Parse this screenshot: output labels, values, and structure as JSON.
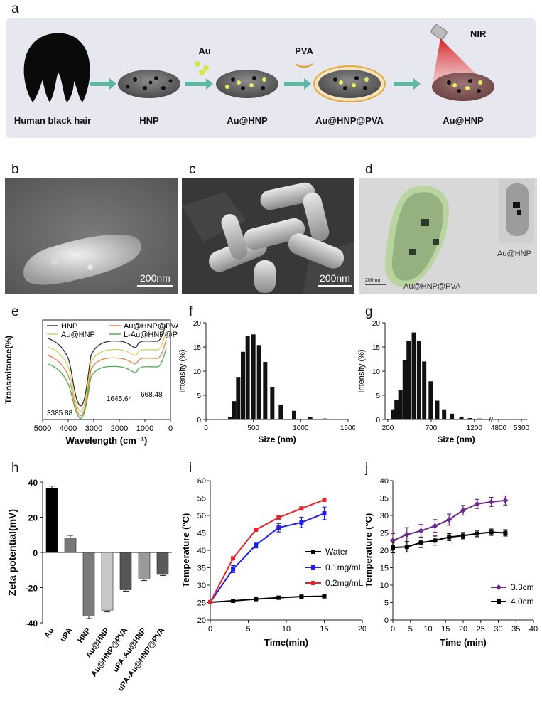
{
  "panels": {
    "a": "a",
    "b": "b",
    "c": "c",
    "d": "d",
    "e": "e",
    "f": "f",
    "g": "g",
    "h": "h",
    "i": "i",
    "j": "j"
  },
  "scheme": {
    "hair_label": "Human black hair",
    "hnp_label": "HNP",
    "au_label": "Au",
    "au_hnp_label": "Au@HNP",
    "pva_label": "PVA",
    "au_hnp_pva_label": "Au@HNP@PVA",
    "nir_label": "NIR",
    "au_hnp_final_label": "Au@HNP"
  },
  "micro": {
    "b_scale": "200nm",
    "c_scale": "200nm",
    "d_scale": "200 nm",
    "d_main_label": "Au@HNP@PVA",
    "d_inset_label": "Au@HNP"
  },
  "colors": {
    "water": "#000000",
    "c01": "#1f1fe6",
    "c02": "#e6262a",
    "c33": "#6b2a8a",
    "c40": "#000000"
  },
  "chart_data": [
    {
      "id": "e",
      "type": "line",
      "xlabel": "Wavelength (cm⁻¹)",
      "ylabel": "Transmitance(%)",
      "xlim": [
        5000,
        0
      ],
      "xticks": [
        "5000",
        "4000",
        "3000",
        "2000",
        "1000",
        "0"
      ],
      "legend": [
        "HNP",
        "Au@HNP",
        "Au@HNP@PVA",
        "L-Au@HNP@PVA"
      ],
      "legend_colors": [
        "#333333",
        "#d8d060",
        "#e8804a",
        "#4cae4c"
      ],
      "annotations": [
        "3385.88",
        "1645.64",
        "668.48"
      ]
    },
    {
      "id": "f",
      "type": "bar",
      "xlabel": "Size (nm)",
      "ylabel": "Intensity (%)",
      "xlim": [
        0,
        1500
      ],
      "ylim": [
        0,
        20
      ],
      "xticks": [
        "0",
        "500",
        "1000",
        "1500"
      ],
      "yticks": [
        "0",
        "5",
        "10",
        "15",
        "20"
      ],
      "x": [
        255,
        295,
        340,
        390,
        440,
        500,
        560,
        625,
        700,
        790,
        930,
        1100,
        1260
      ],
      "values": [
        0.5,
        3.8,
        8.8,
        14,
        17.2,
        17.6,
        15.4,
        11.9,
        6.7,
        3.1,
        1.8,
        0.5,
        0.2
      ]
    },
    {
      "id": "g",
      "type": "bar",
      "xlabel": "Size (nm)",
      "ylabel": "Intensity (%)",
      "ylim": [
        0,
        20
      ],
      "xticks": [
        "200",
        "700",
        "1200",
        "4800",
        "5300"
      ],
      "yticks": [
        "0",
        "5",
        "10",
        "15",
        "20"
      ],
      "x": [
        260,
        300,
        345,
        395,
        440,
        500,
        560,
        620,
        695,
        770,
        850,
        940,
        1050,
        1150,
        1260
      ],
      "values": [
        2.1,
        4.1,
        6.1,
        12.3,
        16.3,
        18.0,
        16.3,
        12.0,
        7.9,
        3.9,
        2.1,
        1.2,
        0.6,
        0.3,
        0.2
      ]
    },
    {
      "id": "h",
      "type": "bar",
      "ylabel": "Zeta potential(mV)",
      "ylim": [
        -40,
        40
      ],
      "yticks": [
        "40",
        "20",
        "0",
        "-20",
        "-40"
      ],
      "categories": [
        "Au",
        "uPA",
        "HNP",
        "Au@HNP",
        "Au@HNP@PVA",
        "uPA-Au@HNP",
        "uPA-Au@HNP@PVA"
      ],
      "values": [
        36.5,
        8.2,
        -36.2,
        -32.8,
        -21.2,
        -15.2,
        -12.5
      ],
      "errors": [
        1.2,
        1.5,
        1.4,
        1.0,
        0.8,
        0.8,
        0.6
      ],
      "bar_colors": [
        "#000000",
        "#777777",
        "#7a7a7a",
        "#c8c8c8",
        "#555555",
        "#9a9a9a",
        "#5a5a5a"
      ]
    },
    {
      "id": "i",
      "type": "line",
      "xlabel": "Time(min)",
      "ylabel": "Temperature (°C)",
      "xlim": [
        0,
        20
      ],
      "ylim": [
        20,
        60
      ],
      "xticks": [
        "0",
        "5",
        "10",
        "15",
        "20"
      ],
      "yticks": [
        "20",
        "25",
        "30",
        "35",
        "40",
        "45",
        "50",
        "55",
        "60"
      ],
      "series": [
        {
          "name": "Water",
          "x": [
            0,
            3,
            6,
            9,
            12,
            15
          ],
          "y": [
            25.1,
            25.5,
            26.0,
            26.4,
            26.7,
            26.8
          ],
          "err": [
            0.3,
            0.3,
            0.3,
            0.3,
            0.3,
            0.3
          ]
        },
        {
          "name": "0.1mg/mL",
          "x": [
            0,
            3,
            6,
            9,
            12,
            15
          ],
          "y": [
            25.1,
            34.6,
            41.5,
            46.5,
            48.0,
            50.6
          ],
          "err": [
            0.5,
            1.0,
            0.8,
            1.2,
            1.5,
            1.8
          ]
        },
        {
          "name": "0.2mg/mL",
          "x": [
            0,
            3,
            6,
            9,
            12,
            15
          ],
          "y": [
            25.1,
            37.7,
            45.9,
            49.4,
            52.0,
            54.5
          ],
          "err": [
            0.3,
            0.4,
            0.4,
            0.4,
            0.4,
            0.4
          ]
        }
      ]
    },
    {
      "id": "j",
      "type": "line",
      "xlabel": "Time (min)",
      "ylabel": "Temperature (°C)",
      "xlim": [
        0,
        40
      ],
      "ylim": [
        0,
        40
      ],
      "xticks": [
        "0",
        "5",
        "10",
        "15",
        "20",
        "25",
        "30",
        "35",
        "40"
      ],
      "yticks": [
        "0",
        "5",
        "10",
        "15",
        "20",
        "25",
        "30",
        "35",
        "40"
      ],
      "series": [
        {
          "name": "3.3cm",
          "x": [
            0,
            4,
            8,
            12,
            16,
            20,
            24,
            28,
            32
          ],
          "y": [
            22.8,
            24.5,
            25.6,
            27.0,
            28.8,
            31.5,
            33.3,
            33.9,
            34.3
          ],
          "err": [
            2.0,
            2.0,
            1.8,
            1.8,
            1.6,
            1.4,
            1.3,
            1.3,
            1.3
          ]
        },
        {
          "name": "4.0cm",
          "x": [
            0,
            4,
            8,
            12,
            16,
            20,
            24,
            28,
            32
          ],
          "y": [
            20.8,
            21.0,
            22.2,
            22.8,
            23.8,
            24.2,
            24.8,
            25.2,
            25.0
          ],
          "err": [
            1.5,
            1.5,
            1.4,
            1.3,
            1.0,
            0.9,
            0.9,
            0.9,
            0.9
          ]
        }
      ]
    }
  ]
}
